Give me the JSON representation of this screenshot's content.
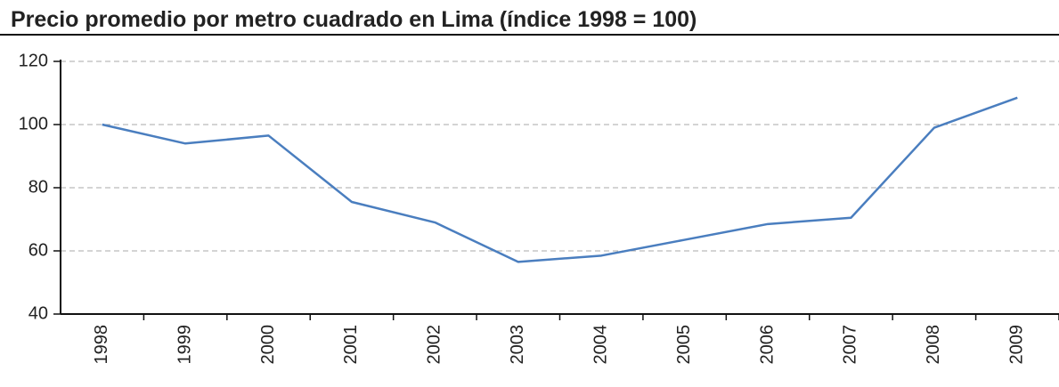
{
  "chart_data": {
    "type": "line",
    "title": "Precio promedio por metro cuadrado en Lima (índice 1998 = 100)",
    "categories": [
      "1998",
      "1999",
      "2000",
      "2001",
      "2002",
      "2003",
      "2004",
      "2005",
      "2006",
      "2007",
      "2008",
      "2009"
    ],
    "series": [
      {
        "name": "Precio promedio",
        "color": "#4a7ebf",
        "values": [
          100,
          94,
          96.5,
          75.5,
          69,
          56.5,
          58.5,
          63.5,
          68.5,
          70.5,
          99,
          108.5
        ]
      }
    ],
    "ylim": [
      40,
      120
    ],
    "yticks": [
      40,
      60,
      80,
      100,
      120
    ],
    "grid": true
  }
}
